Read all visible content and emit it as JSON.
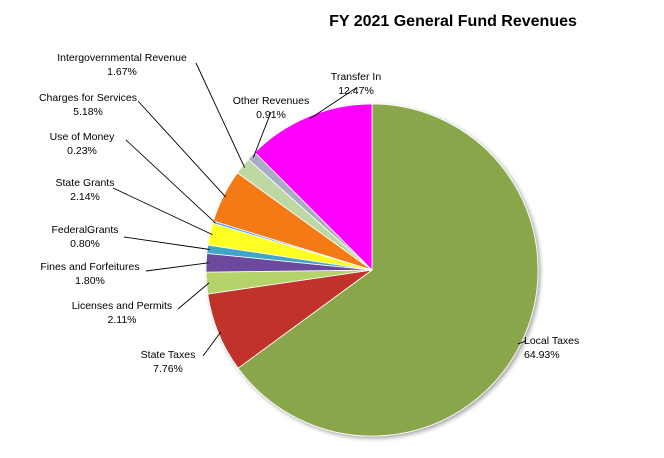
{
  "chart_data": {
    "type": "pie",
    "title": "FY 2021 General Fund Revenues",
    "slices": [
      {
        "label": "Local Taxes",
        "value": 64.93,
        "display": "64.93%",
        "color": "#8aa64b"
      },
      {
        "label": "State Taxes",
        "value": 7.76,
        "display": "7.76%",
        "color": "#c0322c"
      },
      {
        "label": "Licenses and Permits",
        "value": 2.11,
        "display": "2.11%",
        "color": "#b6d26b"
      },
      {
        "label": "Fines and Forfeitures",
        "value": 1.8,
        "display": "1.80%",
        "color": "#6d4a9d"
      },
      {
        "label": "FederalGrants",
        "value": 0.8,
        "display": "0.80%",
        "color": "#3fa6c8"
      },
      {
        "label": "State Grants",
        "value": 2.14,
        "display": "2.14%",
        "color": "#ffff22"
      },
      {
        "label": "Use of Money",
        "value": 0.23,
        "display": "0.23%",
        "color": "#4aa3ff"
      },
      {
        "label": "Charges for Services",
        "value": 5.18,
        "display": "5.18%",
        "color": "#f47a17"
      },
      {
        "label": "Intergovernmental Revenue",
        "value": 1.67,
        "display": "1.67%",
        "color": "#bdd8a3"
      },
      {
        "label": "Other Revenues",
        "value": 0.91,
        "display": "0.91%",
        "color": "#a9a9c8"
      },
      {
        "label": "Transfer In",
        "value": 12.47,
        "display": "12.47%",
        "color": "#ff00ff"
      }
    ],
    "legend": "none"
  }
}
